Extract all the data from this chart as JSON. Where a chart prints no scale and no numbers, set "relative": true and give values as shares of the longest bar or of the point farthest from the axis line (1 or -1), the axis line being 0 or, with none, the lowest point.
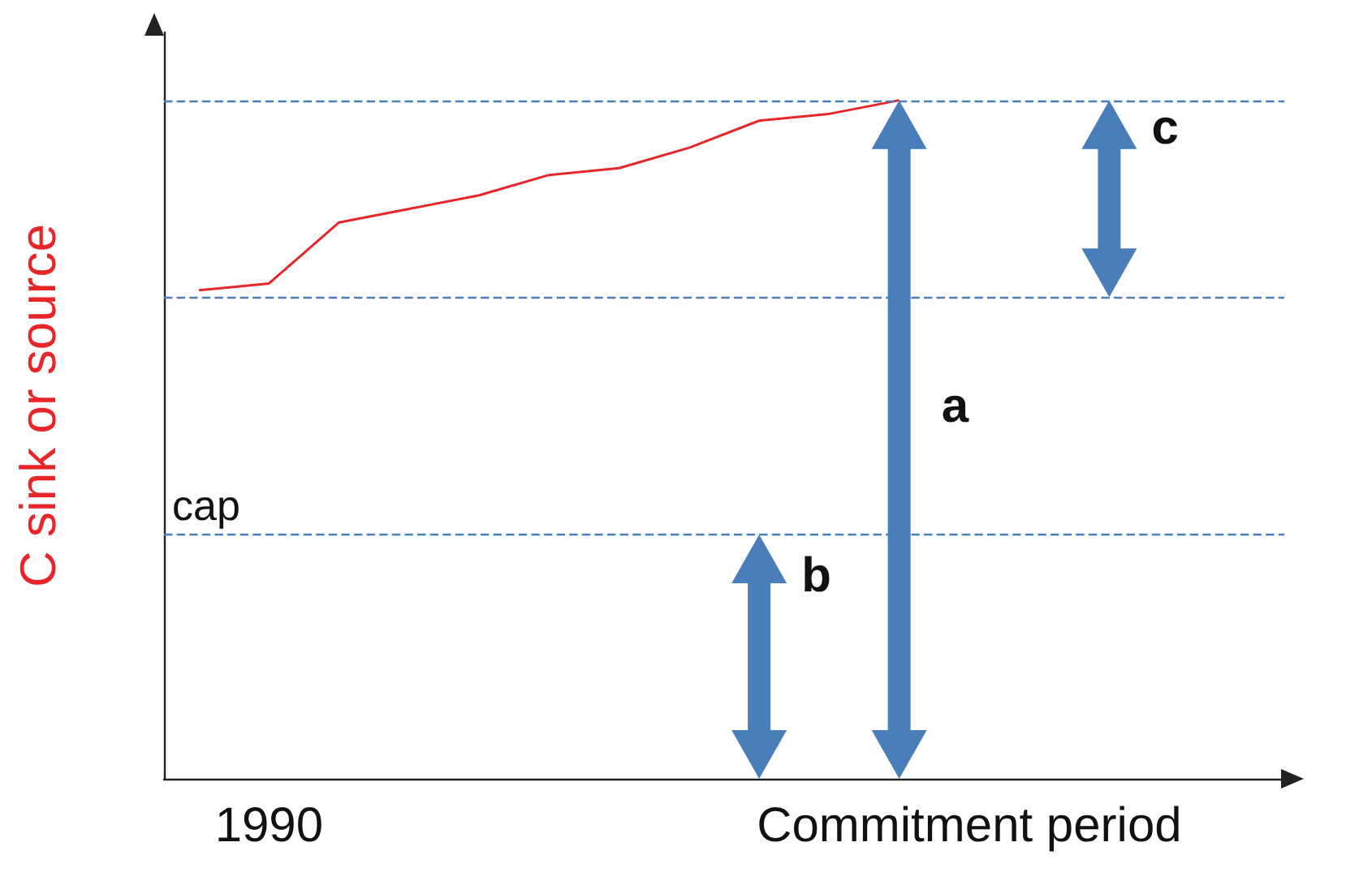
{
  "chart_data": {
    "type": "line",
    "relative": true,
    "ylabel": "C sink or source",
    "categories": [
      null,
      "1990",
      null,
      null,
      null,
      null,
      null,
      null,
      null,
      null,
      null,
      "Commitment period",
      null,
      null,
      null,
      null
    ],
    "series": [
      {
        "color": "#e8262a",
        "values": [
          0.72,
          0.73,
          0.82,
          0.84,
          0.86,
          0.89,
          0.9,
          0.93,
          0.97,
          0.98,
          1.0,
          null,
          null,
          null,
          null,
          null
        ]
      }
    ],
    "ref_lines": [
      {
        "axis": "y",
        "value": 0.71,
        "color": "#4a7ebb",
        "line_style": "dashed"
      },
      {
        "axis": "y",
        "value": 1.0,
        "color": "#4a7ebb",
        "line_style": "dashed"
      },
      {
        "axis": "y",
        "value": 0.36,
        "label": "cap",
        "color": "#4a7ebb",
        "line_style": "dashed"
      }
    ],
    "annotations": [
      "a",
      "b",
      "c"
    ],
    "marker": "none",
    "line_style": "solid",
    "grid": false
  }
}
